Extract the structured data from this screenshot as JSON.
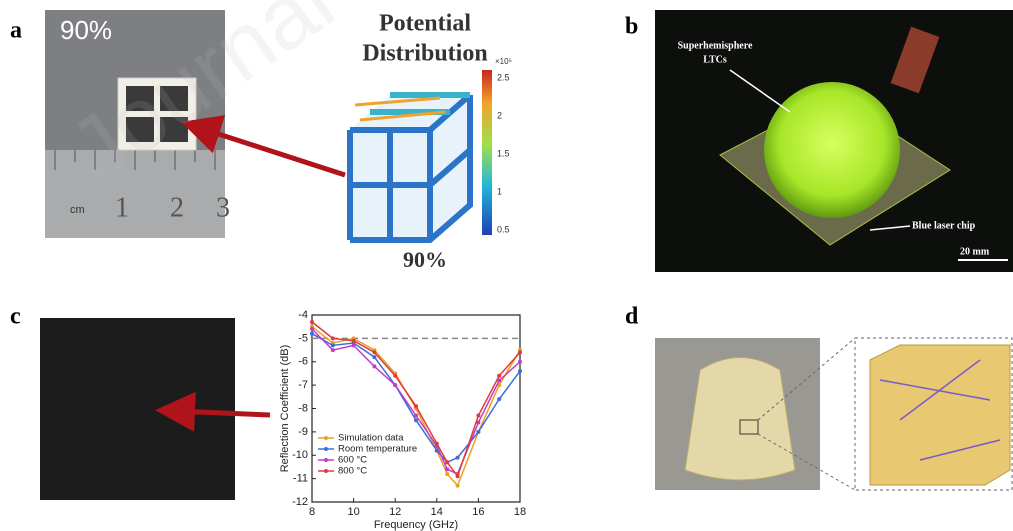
{
  "watermark": "Journal",
  "panel_a": {
    "label": "a",
    "photo_text": "90%",
    "ruler_unit": "cm",
    "ruler_numbers": [
      "1",
      "2",
      "3"
    ],
    "title_lines": [
      "Potential",
      "Distribution"
    ],
    "colorbar_exponent": "×10⁵",
    "colorbar_ticks": [
      "2.5",
      "2",
      "1.5",
      "1",
      "0.5"
    ],
    "caption": "90%"
  },
  "panel_b": {
    "label": "b",
    "annotation_lines": [
      "Superhemisphere",
      "LTCs"
    ],
    "chip_label": "Blue laser chip",
    "scale_bar": "20 mm"
  },
  "panel_c": {
    "label": "c",
    "chart_data": {
      "type": "line",
      "y_label": "Reflection Coefficient (dB)",
      "x_label": "Frequency (GHz)",
      "x": [
        8,
        9,
        10,
        11,
        12,
        13,
        14,
        14.5,
        15,
        16,
        17,
        18
      ],
      "xlim": [
        8,
        18
      ],
      "xticks": [
        8,
        10,
        12,
        14,
        16,
        18
      ],
      "ylim": [
        -12,
        -4
      ],
      "yticks": [
        -4,
        -5,
        -6,
        -7,
        -8,
        -9,
        -10,
        -11,
        -12
      ],
      "reference_line": -5,
      "legend": "lower-left",
      "series": [
        {
          "name": "Simulation data",
          "color": "#e8a020",
          "values": [
            -4.5,
            -5.2,
            -5,
            -5.5,
            -6.5,
            -8,
            -9.8,
            -10.8,
            -11.3,
            -9,
            -7,
            -5.5
          ]
        },
        {
          "name": "Room temperature",
          "color": "#3a6fd8",
          "values": [
            -4.8,
            -5.3,
            -5.2,
            -5.8,
            -7,
            -8.5,
            -9.8,
            -10.3,
            -10.1,
            -9,
            -7.6,
            -6.4
          ]
        },
        {
          "name": "600 °C",
          "color": "#c23cc8",
          "values": [
            -4.6,
            -5.5,
            -5.3,
            -6.2,
            -7,
            -8.3,
            -9.6,
            -10.6,
            -10.8,
            -8.6,
            -6.8,
            -6
          ]
        },
        {
          "name": "800 °C",
          "color": "#e03a3a",
          "values": [
            -4.3,
            -5,
            -5.1,
            -5.6,
            -6.6,
            -7.9,
            -9.5,
            -10.3,
            -10.9,
            -8.3,
            -6.6,
            -5.6
          ]
        }
      ]
    }
  },
  "panel_d": {
    "label": "d"
  }
}
